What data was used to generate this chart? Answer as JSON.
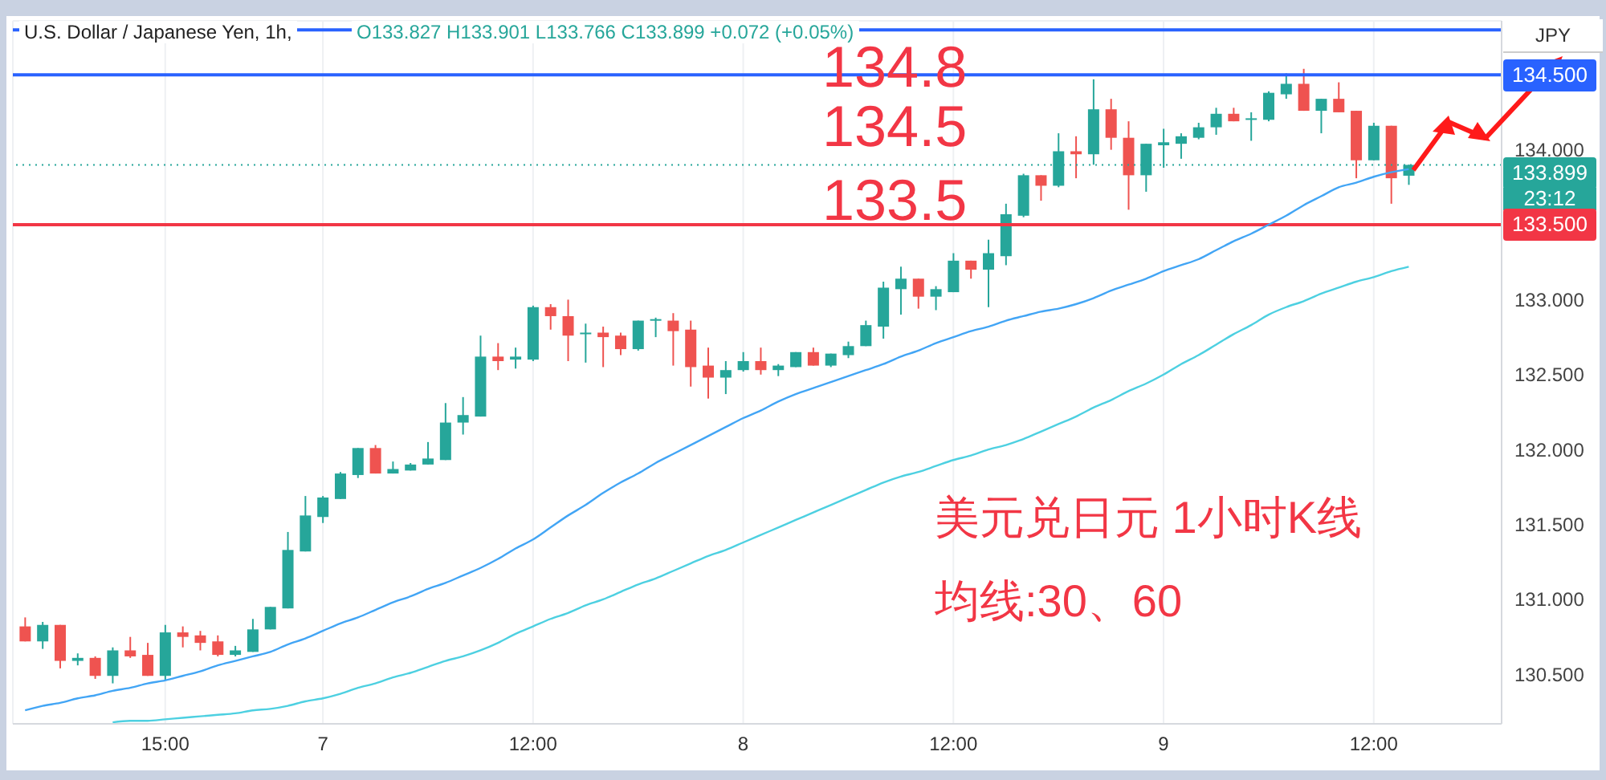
{
  "chart_data": {
    "type": "candlestick",
    "title": "U.S. Dollar / Japanese Yen, 1h,",
    "subtitle": "O133.827 H133.901 L133.766 C133.899 +0.072 (+0.05%)",
    "ylabel": "JPY",
    "categories": [
      null,
      null,
      null,
      null,
      null,
      null,
      null,
      null,
      "15:00",
      null,
      null,
      null,
      null,
      null,
      null,
      null,
      null,
      "7",
      null,
      null,
      null,
      null,
      null,
      null,
      null,
      null,
      null,
      null,
      null,
      "12:00",
      null,
      null,
      null,
      null,
      null,
      null,
      null,
      null,
      null,
      null,
      null,
      "8",
      null,
      null,
      null,
      null,
      null,
      null,
      null,
      null,
      null,
      null,
      null,
      "12:00",
      null,
      null,
      null,
      null,
      null,
      null,
      null,
      null,
      null,
      null,
      null,
      "9",
      null,
      null,
      null,
      null,
      null,
      null,
      null,
      null,
      null,
      null,
      null,
      "12:00",
      null,
      null
    ],
    "ohlc": [
      [
        130.82,
        130.88,
        130.72,
        130.72
      ],
      [
        130.72,
        130.85,
        130.67,
        130.83
      ],
      [
        130.83,
        130.83,
        130.54,
        130.59
      ],
      [
        130.59,
        130.64,
        130.56,
        130.61
      ],
      [
        130.61,
        130.62,
        130.47,
        130.49
      ],
      [
        130.49,
        130.68,
        130.44,
        130.66
      ],
      [
        130.66,
        130.75,
        130.61,
        130.62
      ],
      [
        130.63,
        130.71,
        130.49,
        130.49
      ],
      [
        130.49,
        130.83,
        130.46,
        130.78
      ],
      [
        130.78,
        130.82,
        130.68,
        130.75
      ],
      [
        130.76,
        130.79,
        130.66,
        130.71
      ],
      [
        130.72,
        130.76,
        130.62,
        130.63
      ],
      [
        130.63,
        130.69,
        130.62,
        130.66
      ],
      [
        130.65,
        130.87,
        130.65,
        130.8
      ],
      [
        130.8,
        130.95,
        130.8,
        130.95
      ],
      [
        130.94,
        131.45,
        130.94,
        131.33
      ],
      [
        131.32,
        131.69,
        131.32,
        131.56
      ],
      [
        131.55,
        131.69,
        131.51,
        131.68
      ],
      [
        131.67,
        131.85,
        131.67,
        131.84
      ],
      [
        131.83,
        132.01,
        131.81,
        132.01
      ],
      [
        132.01,
        132.03,
        131.84,
        131.84
      ],
      [
        131.84,
        131.92,
        131.84,
        131.87
      ],
      [
        131.86,
        131.91,
        131.86,
        131.9
      ],
      [
        131.9,
        132.05,
        131.9,
        131.94
      ],
      [
        131.93,
        132.31,
        131.93,
        132.18
      ],
      [
        132.18,
        132.35,
        132.1,
        132.23
      ],
      [
        132.22,
        132.76,
        132.22,
        132.62
      ],
      [
        132.62,
        132.71,
        132.53,
        132.59
      ],
      [
        132.6,
        132.68,
        132.54,
        132.62
      ],
      [
        132.6,
        132.96,
        132.59,
        132.95
      ],
      [
        132.95,
        132.97,
        132.8,
        132.89
      ],
      [
        132.89,
        133.0,
        132.59,
        132.76
      ],
      [
        132.77,
        132.84,
        132.58,
        132.78
      ],
      [
        132.78,
        132.82,
        132.55,
        132.75
      ],
      [
        132.76,
        132.78,
        132.63,
        132.67
      ],
      [
        132.67,
        132.86,
        132.66,
        132.86
      ],
      [
        132.86,
        132.88,
        132.75,
        132.87
      ],
      [
        132.86,
        132.91,
        132.56,
        132.79
      ],
      [
        132.8,
        132.86,
        132.42,
        132.55
      ],
      [
        132.56,
        132.68,
        132.34,
        132.48
      ],
      [
        132.48,
        132.59,
        132.37,
        132.53
      ],
      [
        132.53,
        132.65,
        132.52,
        132.59
      ],
      [
        132.59,
        132.68,
        132.5,
        132.53
      ],
      [
        132.53,
        132.57,
        132.49,
        132.56
      ],
      [
        132.55,
        132.65,
        132.55,
        132.65
      ],
      [
        132.65,
        132.68,
        132.56,
        132.56
      ],
      [
        132.56,
        132.64,
        132.55,
        132.64
      ],
      [
        132.63,
        132.72,
        132.61,
        132.69
      ],
      [
        132.69,
        132.86,
        132.69,
        132.83
      ],
      [
        132.82,
        133.12,
        132.74,
        133.08
      ],
      [
        133.07,
        133.22,
        132.9,
        133.14
      ],
      [
        133.14,
        133.14,
        132.94,
        133.02
      ],
      [
        133.02,
        133.09,
        132.93,
        133.07
      ],
      [
        133.05,
        133.31,
        133.05,
        133.26
      ],
      [
        133.26,
        133.26,
        133.14,
        133.2
      ],
      [
        133.2,
        133.4,
        132.95,
        133.31
      ],
      [
        133.29,
        133.64,
        133.23,
        133.57
      ],
      [
        133.56,
        133.84,
        133.55,
        133.83
      ],
      [
        133.83,
        133.83,
        133.66,
        133.76
      ],
      [
        133.76,
        134.11,
        133.75,
        133.99
      ],
      [
        133.99,
        134.09,
        133.81,
        133.97
      ],
      [
        133.97,
        134.47,
        133.9,
        134.27
      ],
      [
        134.27,
        134.34,
        134.0,
        134.08
      ],
      [
        134.08,
        134.19,
        133.6,
        133.83
      ],
      [
        133.83,
        134.04,
        133.72,
        134.04
      ],
      [
        134.03,
        134.14,
        133.88,
        134.05
      ],
      [
        134.04,
        134.11,
        133.94,
        134.09
      ],
      [
        134.08,
        134.18,
        134.07,
        134.15
      ],
      [
        134.15,
        134.28,
        134.1,
        134.24
      ],
      [
        134.24,
        134.28,
        134.19,
        134.19
      ],
      [
        134.2,
        134.25,
        134.06,
        134.21
      ],
      [
        134.2,
        134.39,
        134.19,
        134.38
      ],
      [
        134.37,
        134.51,
        134.34,
        134.44
      ],
      [
        134.44,
        134.54,
        134.26,
        134.26
      ],
      [
        134.26,
        134.34,
        134.11,
        134.34
      ],
      [
        134.34,
        134.45,
        134.25,
        134.25
      ],
      [
        134.26,
        134.26,
        133.81,
        133.93
      ],
      [
        133.93,
        134.18,
        133.93,
        134.16
      ],
      [
        134.16,
        134.16,
        133.64,
        133.81
      ],
      [
        133.827,
        133.901,
        133.766,
        133.899
      ]
    ],
    "colors": [
      "#ef5350",
      "#26a69a",
      "#ef5350",
      "#26a69a",
      "#ef5350",
      "#26a69a",
      "#ef5350",
      "#ef5350",
      "#26a69a",
      "#ef5350",
      "#ef5350",
      "#ef5350",
      "#26a69a",
      "#26a69a",
      "#26a69a",
      "#26a69a",
      "#26a69a",
      "#26a69a",
      "#26a69a",
      "#26a69a",
      "#ef5350",
      "#26a69a",
      "#26a69a",
      "#26a69a",
      "#26a69a",
      "#26a69a",
      "#26a69a",
      "#ef5350",
      "#26a69a",
      "#26a69a",
      "#ef5350",
      "#ef5350",
      "#26a69a",
      "#ef5350",
      "#ef5350",
      "#26a69a",
      "#26a69a",
      "#ef5350",
      "#ef5350",
      "#ef5350",
      "#26a69a",
      "#26a69a",
      "#ef5350",
      "#26a69a",
      "#26a69a",
      "#ef5350",
      "#26a69a",
      "#26a69a",
      "#26a69a",
      "#26a69a",
      "#26a69a",
      "#ef5350",
      "#26a69a",
      "#26a69a",
      "#ef5350",
      "#26a69a",
      "#26a69a",
      "#26a69a",
      "#ef5350",
      "#26a69a",
      "#ef5350",
      "#26a69a",
      "#ef5350",
      "#ef5350",
      "#26a69a",
      "#26a69a",
      "#26a69a",
      "#26a69a",
      "#26a69a",
      "#ef5350",
      "#26a69a",
      "#26a69a",
      "#26a69a",
      "#ef5350",
      "#26a69a",
      "#ef5350",
      "#ef5350",
      "#26a69a",
      "#ef5350",
      "#26a69a"
    ],
    "series": [
      {
        "type": "line",
        "color": "#42a5f5",
        "values": [
          130.26,
          130.29,
          130.31,
          130.34,
          130.36,
          130.39,
          130.41,
          130.44,
          130.46,
          130.49,
          130.52,
          130.56,
          130.59,
          130.62,
          130.65,
          130.7,
          130.74,
          130.79,
          130.84,
          130.88,
          130.93,
          130.98,
          131.02,
          131.07,
          131.11,
          131.16,
          131.21,
          131.27,
          131.34,
          131.4,
          131.48,
          131.56,
          131.63,
          131.71,
          131.78,
          131.84,
          131.91,
          131.97,
          132.03,
          132.09,
          132.15,
          132.21,
          132.26,
          132.32,
          132.37,
          132.41,
          132.45,
          132.49,
          132.53,
          132.57,
          132.62,
          132.66,
          132.71,
          132.75,
          132.79,
          132.82,
          132.86,
          132.89,
          132.92,
          132.94,
          132.97,
          133.01,
          133.06,
          133.1,
          133.14,
          133.19,
          133.23,
          133.27,
          133.33,
          133.39,
          133.44,
          133.5,
          133.56,
          133.63,
          133.69,
          133.75,
          133.78,
          133.82,
          133.85,
          133.87
        ]
      },
      {
        "type": "line",
        "color": "#4dd0e1",
        "values": [
          null,
          null,
          null,
          null,
          null,
          130.18,
          130.19,
          130.19,
          130.2,
          130.21,
          130.22,
          130.23,
          130.24,
          130.26,
          130.27,
          130.29,
          130.32,
          130.34,
          130.37,
          130.41,
          130.44,
          130.48,
          130.51,
          130.55,
          130.59,
          130.62,
          130.66,
          130.71,
          130.77,
          130.82,
          130.87,
          130.91,
          130.96,
          131.0,
          131.05,
          131.1,
          131.14,
          131.19,
          131.24,
          131.29,
          131.33,
          131.38,
          131.43,
          131.48,
          131.53,
          131.58,
          131.63,
          131.68,
          131.73,
          131.78,
          131.82,
          131.85,
          131.89,
          131.93,
          131.96,
          132.0,
          132.03,
          132.07,
          132.12,
          132.17,
          132.22,
          132.28,
          132.33,
          132.39,
          132.44,
          132.5,
          132.57,
          132.63,
          132.7,
          132.77,
          132.83,
          132.9,
          132.95,
          132.99,
          133.04,
          133.08,
          133.12,
          133.15,
          133.19,
          133.22
        ]
      }
    ],
    "ylim": [
      130.17,
      134.86
    ],
    "yticks": [
      {
        "value": 130.5,
        "label": "130.500"
      },
      {
        "value": 131,
        "label": "131.000"
      },
      {
        "value": 131.5,
        "label": "131.500"
      },
      {
        "value": 132,
        "label": "132.000"
      },
      {
        "value": 132.5,
        "label": "132.500"
      },
      {
        "value": 133,
        "label": "133.000"
      },
      {
        "value": 133.5,
        "label": null
      },
      {
        "value": 134,
        "label": "134.000"
      },
      {
        "value": 134.5,
        "label": null
      }
    ],
    "grid": true,
    "ref_lines": [
      {
        "axis": "y",
        "value": 134.8,
        "color": "#2962ff"
      },
      {
        "axis": "y",
        "value": 134.5,
        "label": "134.500",
        "color": "#2962ff"
      },
      {
        "axis": "y",
        "value": 133.5,
        "label": "133.500",
        "color": "#f23645"
      },
      {
        "axis": "y",
        "value": 133.899,
        "label": "133.899",
        "color": "#26a69a",
        "line_style": "dotted"
      }
    ],
    "annotations": [
      "134.8",
      "134.5",
      "133.5",
      "23:12",
      "美元兑日元 1小时K线",
      "均线:30、60"
    ]
  }
}
